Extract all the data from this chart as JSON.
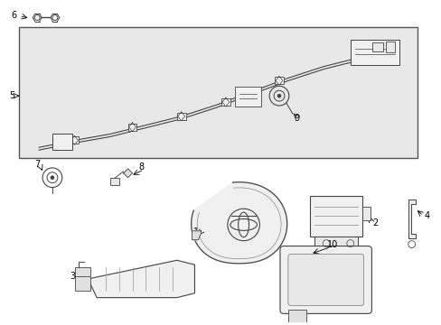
{
  "background_color": "#ffffff",
  "box_bg": "#e8e8e8",
  "box_border": "#555555",
  "figsize": [
    4.89,
    3.6
  ],
  "dpi": 100,
  "line_color": "#444444",
  "lw": 0.7
}
